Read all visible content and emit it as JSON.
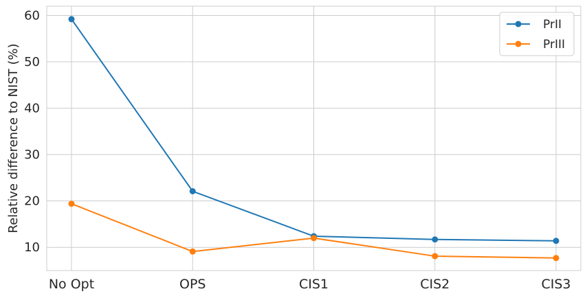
{
  "chart_data": {
    "type": "line",
    "categories": [
      "No Opt",
      "OPS",
      "CIS1",
      "CIS2",
      "CIS3"
    ],
    "series": [
      {
        "name": "PrII",
        "values": [
          59.2,
          22.1,
          12.4,
          11.7,
          11.4
        ],
        "color": "#1f77b4"
      },
      {
        "name": "PrIII",
        "values": [
          19.4,
          9.1,
          12.0,
          8.1,
          7.7
        ],
        "color": "#ff7f0e"
      }
    ],
    "xlabel": "",
    "ylabel": "Relative difference to NIST (%)",
    "ylim": [
      5,
      62
    ],
    "yticks": [
      10,
      20,
      30,
      40,
      50,
      60
    ],
    "grid": true,
    "legend_position": "top-right",
    "marker": "circle"
  }
}
